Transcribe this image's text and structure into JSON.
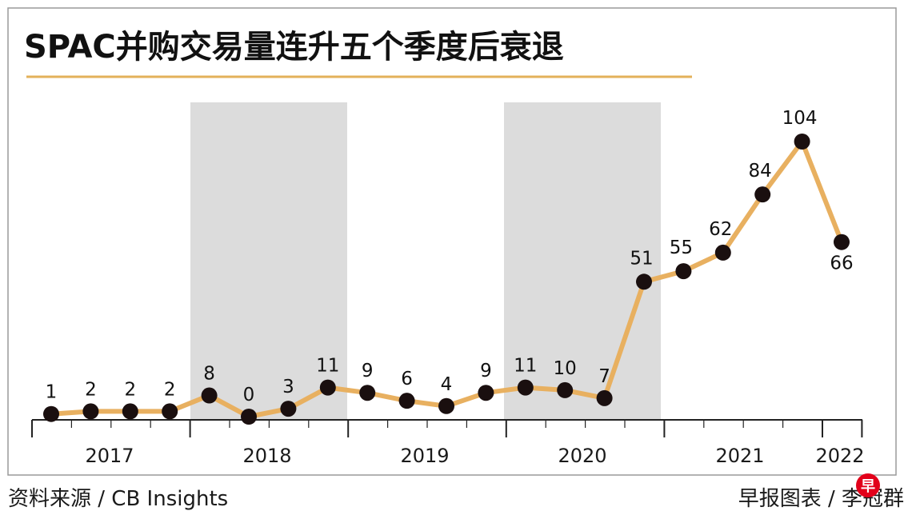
{
  "chart_data": {
    "type": "line",
    "title": "SPAC并购交易量连升五个季度后衰退",
    "xlabel": "",
    "ylabel": "",
    "ylim": [
      0,
      110
    ],
    "quarters": [
      "2017Q1",
      "2017Q2",
      "2017Q3",
      "2017Q4",
      "2018Q1",
      "2018Q2",
      "2018Q3",
      "2018Q4",
      "2019Q1",
      "2019Q2",
      "2019Q3",
      "2019Q4",
      "2020Q1",
      "2020Q2",
      "2020Q3",
      "2020Q4",
      "2021Q1",
      "2021Q2",
      "2021Q3",
      "2021Q4",
      "2022Q1"
    ],
    "values": [
      1,
      2,
      2,
      2,
      8,
      0,
      3,
      11,
      9,
      6,
      4,
      9,
      11,
      10,
      7,
      51,
      55,
      62,
      84,
      104,
      66
    ],
    "year_labels": [
      "2017",
      "2018",
      "2019",
      "2020",
      "2021",
      "2022"
    ],
    "line_color": "#e8b060",
    "marker_color": "#1a0f0f",
    "shade_color": "#dcdcdc",
    "underline_color": "#e3b15a"
  },
  "footer": {
    "source": "资料来源 / CB Insights",
    "credit": "早报图表 / 李冠群",
    "logo_char": "早"
  }
}
